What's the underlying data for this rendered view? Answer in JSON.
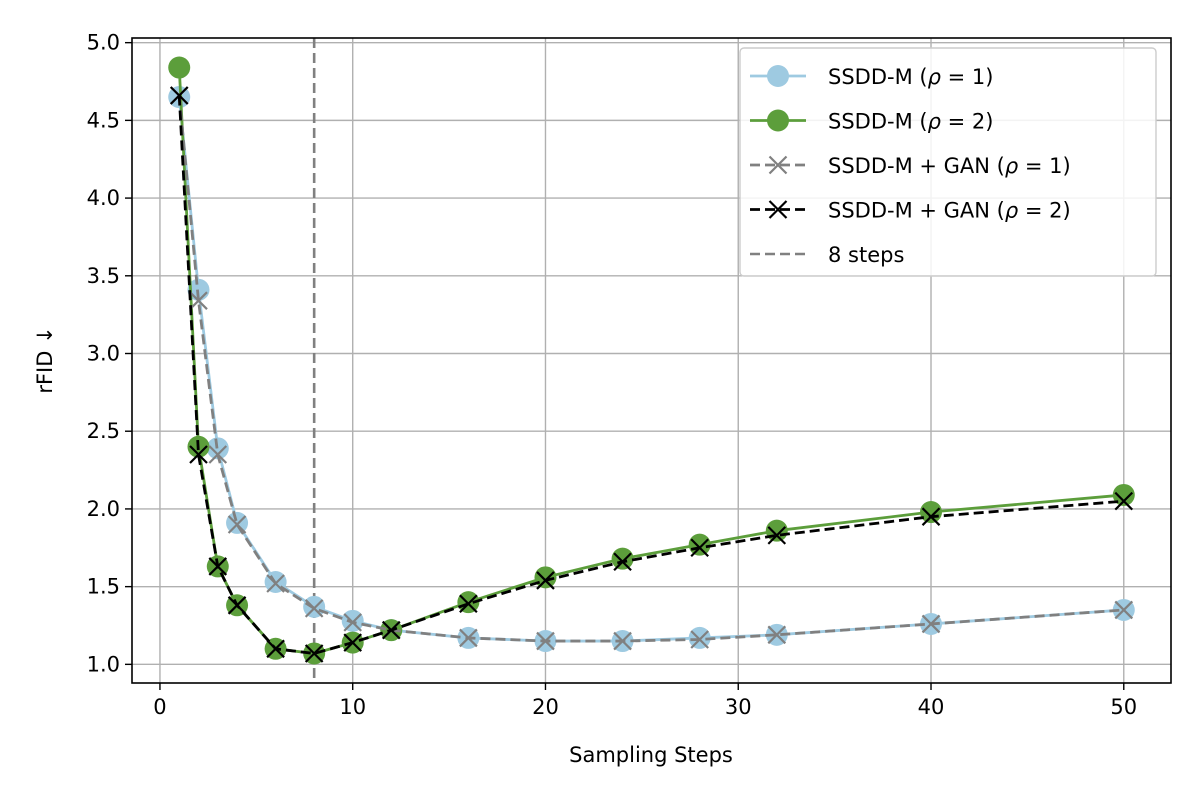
{
  "chart_data": {
    "type": "line",
    "title": "",
    "xlabel": "Sampling Steps",
    "ylabel": "rFID ↓",
    "xlim": [
      -1.45,
      52.45
    ],
    "ylim": [
      0.88,
      5.03
    ],
    "grid": true,
    "legend_position": "top-right",
    "x_ticks": [
      0,
      10,
      20,
      30,
      40,
      50
    ],
    "x_tick_labels": [
      "0",
      "10",
      "20",
      "30",
      "40",
      "50"
    ],
    "y_ticks": [
      1.0,
      1.5,
      2.0,
      2.5,
      3.0,
      3.5,
      4.0,
      4.5,
      5.0
    ],
    "y_tick_labels": [
      "1.0",
      "1.5",
      "2.0",
      "2.5",
      "3.0",
      "3.5",
      "4.0",
      "4.5",
      "5.0"
    ],
    "x": [
      1,
      2,
      3,
      4,
      6,
      8,
      10,
      12,
      16,
      20,
      24,
      28,
      32,
      40,
      50
    ],
    "series": [
      {
        "name": "SSDD-M (ρ = 1)",
        "label_prefix": "SSDD-M (",
        "label_var": "ρ",
        "label_suffix": " = 1)",
        "color": "#9ecae1",
        "marker": "circle",
        "linestyle": "solid",
        "values": [
          4.65,
          3.41,
          2.39,
          1.91,
          1.53,
          1.37,
          1.28,
          1.22,
          1.17,
          1.15,
          1.15,
          1.17,
          1.19,
          1.26,
          1.35
        ]
      },
      {
        "name": "SSDD-M (ρ = 2)",
        "label_prefix": "SSDD-M (",
        "label_var": "ρ",
        "label_suffix": " = 2)",
        "color": "#5c9e3b",
        "marker": "circle",
        "linestyle": "solid",
        "values": [
          4.84,
          2.4,
          1.63,
          1.38,
          1.1,
          1.07,
          1.14,
          1.22,
          1.4,
          1.56,
          1.68,
          1.77,
          1.86,
          1.98,
          2.09
        ]
      },
      {
        "name": "SSDD-M + GAN (ρ = 1)",
        "label_prefix": "SSDD-M + GAN (",
        "label_var": "ρ",
        "label_suffix": " = 1)",
        "color": "#808080",
        "marker": "x",
        "linestyle": "dashed",
        "values": [
          4.66,
          3.34,
          2.35,
          1.9,
          1.52,
          1.36,
          1.27,
          1.22,
          1.17,
          1.15,
          1.15,
          1.16,
          1.19,
          1.26,
          1.35
        ]
      },
      {
        "name": "SSDD-M + GAN (ρ = 2)",
        "label_prefix": "SSDD-M + GAN (",
        "label_var": "ρ",
        "label_suffix": " = 2)",
        "color": "#000000",
        "marker": "x",
        "linestyle": "dashed",
        "values": [
          4.66,
          2.35,
          1.63,
          1.38,
          1.1,
          1.07,
          1.14,
          1.22,
          1.39,
          1.54,
          1.66,
          1.75,
          1.83,
          1.95,
          2.05
        ]
      }
    ],
    "vlines": [
      {
        "name": "8 steps",
        "x": 8,
        "color": "#808080",
        "linestyle": "dashed"
      }
    ]
  }
}
